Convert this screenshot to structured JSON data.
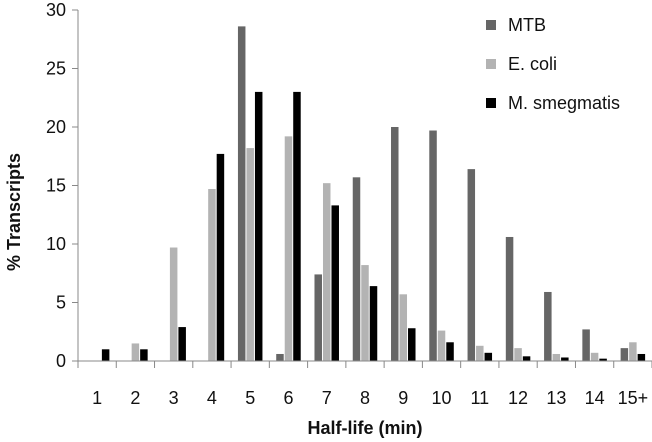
{
  "chart_data": {
    "type": "bar",
    "title": "",
    "xlabel": "Half-life (min)",
    "ylabel": "% Transcripts",
    "categories": [
      "1",
      "2",
      "3",
      "4",
      "5",
      "6",
      "7",
      "8",
      "9",
      "10",
      "11",
      "12",
      "13",
      "14",
      "15+"
    ],
    "ylim": [
      0,
      30
    ],
    "yticks": [
      0,
      5,
      10,
      15,
      20,
      25,
      30
    ],
    "grid": false,
    "legend_position": "top-right",
    "series": [
      {
        "name": "MTB",
        "color": "#666666",
        "values": [
          0,
          0,
          0,
          0,
          28.6,
          0.6,
          7.4,
          15.7,
          20.0,
          19.7,
          16.4,
          10.6,
          5.9,
          2.7,
          1.1
        ]
      },
      {
        "name": "E. coli",
        "color": "#b3b3b3",
        "values": [
          0,
          1.5,
          9.7,
          14.7,
          18.2,
          19.2,
          15.2,
          8.2,
          5.7,
          2.6,
          1.3,
          1.1,
          0.6,
          0.7,
          1.6
        ]
      },
      {
        "name": "M. smegmatis",
        "color": "#000000",
        "values": [
          1.0,
          1.0,
          2.9,
          17.7,
          23.0,
          23.0,
          13.3,
          6.4,
          2.8,
          1.6,
          0.7,
          0.4,
          0.3,
          0.2,
          0.6
        ]
      }
    ]
  }
}
